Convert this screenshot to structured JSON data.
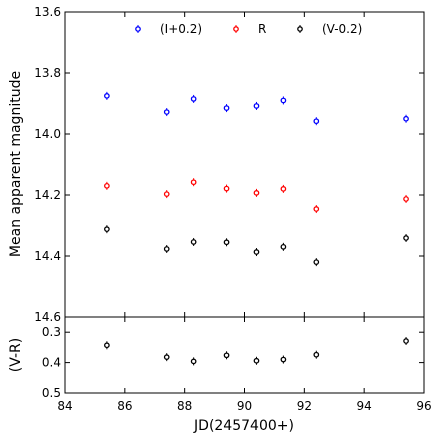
{
  "chart_data": [
    {
      "type": "scatter",
      "ylabel": "Mean apparent magnitude",
      "xlim": [
        84,
        96
      ],
      "ylim": [
        13.6,
        14.6
      ],
      "y_inverted": true,
      "yticks": [
        "13.6",
        "13.8",
        "14.0",
        "14.2",
        "14.4",
        "14.6"
      ],
      "legend": "top",
      "series": [
        {
          "name": "(I+0.2)",
          "color": "#0000ff",
          "x": [
            85.4,
            87.4,
            88.3,
            89.4,
            90.4,
            91.3,
            92.4,
            95.4
          ],
          "y": [
            13.875,
            13.928,
            13.885,
            13.915,
            13.908,
            13.89,
            13.958,
            13.95
          ]
        },
        {
          "name": "R",
          "color": "#ff0000",
          "x": [
            85.4,
            87.4,
            88.3,
            89.4,
            90.4,
            91.3,
            92.4,
            95.4
          ],
          "y": [
            14.17,
            14.197,
            14.158,
            14.179,
            14.193,
            14.18,
            14.246,
            14.213
          ]
        },
        {
          "name": "(V-0.2)",
          "color": "#000000",
          "x": [
            85.4,
            87.4,
            88.3,
            89.4,
            90.4,
            91.3,
            92.4,
            95.4
          ],
          "y": [
            14.312,
            14.377,
            14.354,
            14.355,
            14.387,
            14.37,
            14.42,
            14.341
          ]
        }
      ]
    },
    {
      "type": "scatter",
      "xlabel": "JD(2457400+)",
      "ylabel": "(V-R)",
      "xlim": [
        84,
        96
      ],
      "ylim": [
        0.25,
        0.5
      ],
      "y_inverted": true,
      "xticks": [
        "84",
        "86",
        "88",
        "90",
        "92",
        "94",
        "96"
      ],
      "yticks": [
        "0.3",
        "0.4",
        "0.5"
      ],
      "series": [
        {
          "color": "#000000",
          "x": [
            85.4,
            87.4,
            88.3,
            89.4,
            90.4,
            91.3,
            92.4,
            95.4
          ],
          "y": [
            0.343,
            0.382,
            0.396,
            0.376,
            0.394,
            0.39,
            0.374,
            0.329
          ]
        }
      ]
    }
  ]
}
